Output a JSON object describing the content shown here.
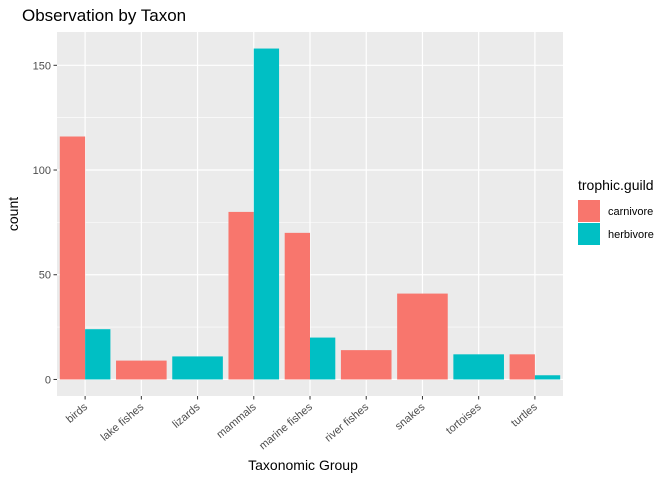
{
  "chart_data": {
    "type": "bar",
    "title": "Observation by Taxon",
    "xlabel": "Taxonomic Group",
    "ylabel": "count",
    "ylim": [
      -7.9,
      165.9
    ],
    "yticks": [
      0,
      50,
      100,
      150
    ],
    "grid": true,
    "categories": [
      "birds",
      "lake fishes",
      "lizards",
      "mammals",
      "marine fishes",
      "river fishes",
      "snakes",
      "tortoises",
      "turtles"
    ],
    "bars": [
      {
        "category": "birds",
        "series": "carnivore",
        "value": 116
      },
      {
        "category": "birds",
        "series": "herbivore",
        "value": 24
      },
      {
        "category": "lake fishes",
        "series": "carnivore",
        "value": 9
      },
      {
        "category": "lizards",
        "series": "herbivore",
        "value": 11
      },
      {
        "category": "mammals",
        "series": "carnivore",
        "value": 80
      },
      {
        "category": "mammals",
        "series": "herbivore",
        "value": 158
      },
      {
        "category": "marine fishes",
        "series": "carnivore",
        "value": 70
      },
      {
        "category": "marine fishes",
        "series": "herbivore",
        "value": 20
      },
      {
        "category": "river fishes",
        "series": "carnivore",
        "value": 14
      },
      {
        "category": "snakes",
        "series": "carnivore",
        "value": 41
      },
      {
        "category": "tortoises",
        "series": "herbivore",
        "value": 12
      },
      {
        "category": "turtles",
        "series": "carnivore",
        "value": 12
      },
      {
        "category": "turtles",
        "series": "herbivore",
        "value": 2
      }
    ],
    "legend": {
      "title": "trophic.guild",
      "placement": "right",
      "items": [
        {
          "name": "carnivore",
          "color": "#F8766D"
        },
        {
          "name": "herbivore",
          "color": "#00BFC4"
        }
      ]
    },
    "colors": {
      "panel": "#EBEBEB",
      "grid": "#FFFFFF",
      "tick_text": "#4D4D4D",
      "tick_mark": "#333333"
    }
  }
}
